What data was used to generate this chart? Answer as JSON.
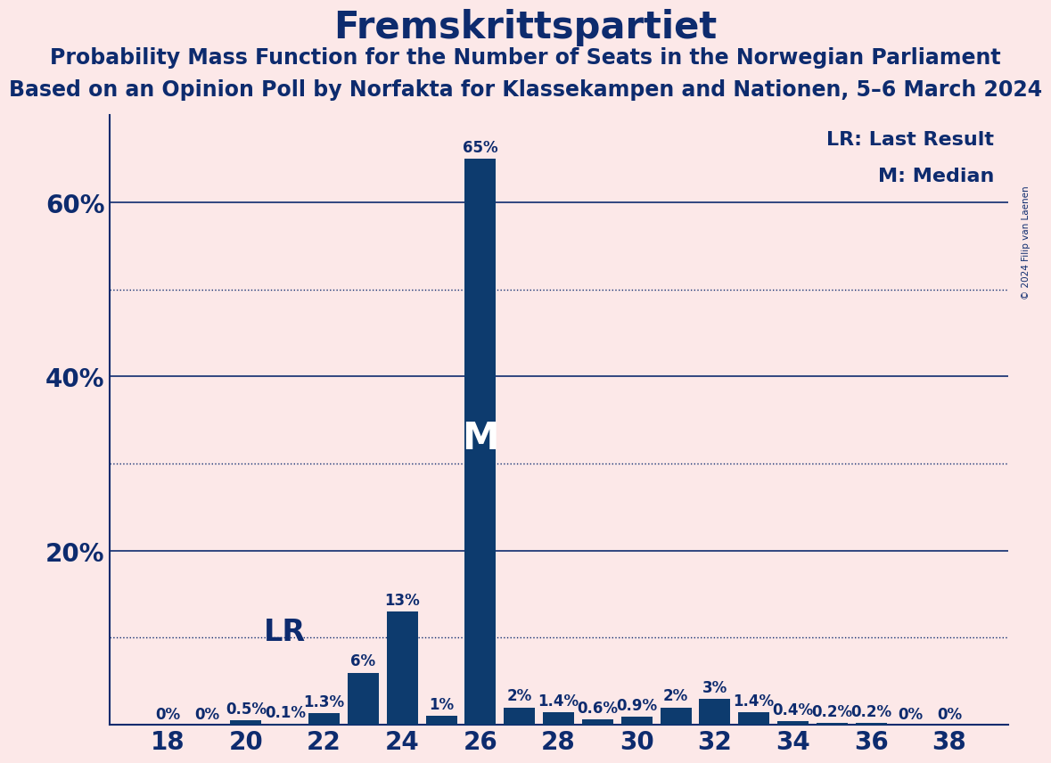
{
  "title": "Fremskrittspartiet",
  "subtitle1": "Probability Mass Function for the Number of Seats in the Norwegian Parliament",
  "subtitle2": "Based on an Opinion Poll by Norfakta for Klassekampen and Nationen, 5–6 March 2024",
  "copyright": "© 2024 Filip van Laenen",
  "legend_lr": "LR: Last Result",
  "legend_m": "M: Median",
  "seats": [
    18,
    19,
    20,
    21,
    22,
    23,
    24,
    25,
    26,
    27,
    28,
    29,
    30,
    31,
    32,
    33,
    34,
    35,
    36,
    37,
    38
  ],
  "probabilities": [
    0.0,
    0.0,
    0.5,
    0.1,
    1.3,
    6.0,
    13.0,
    1.0,
    65.0,
    2.0,
    1.4,
    0.6,
    0.9,
    2.0,
    3.0,
    1.4,
    0.4,
    0.2,
    0.2,
    0.0,
    0.0
  ],
  "bar_color": "#0d3b6e",
  "background_color": "#fce8e8",
  "text_color": "#0d2b6e",
  "median_seat": 26,
  "lr_seat": 21,
  "ylim_max": 70,
  "solid_yticks": [
    20,
    40,
    60
  ],
  "dotted_yticks": [
    10,
    30,
    50
  ],
  "xlabel_seats": [
    18,
    20,
    22,
    24,
    26,
    28,
    30,
    32,
    34,
    36,
    38
  ],
  "title_fontsize": 30,
  "subtitle_fontsize": 17,
  "legend_fontsize": 16,
  "tick_fontsize": 20,
  "bar_label_fontsize": 12,
  "M_fontsize": 30,
  "LR_fontsize": 24
}
